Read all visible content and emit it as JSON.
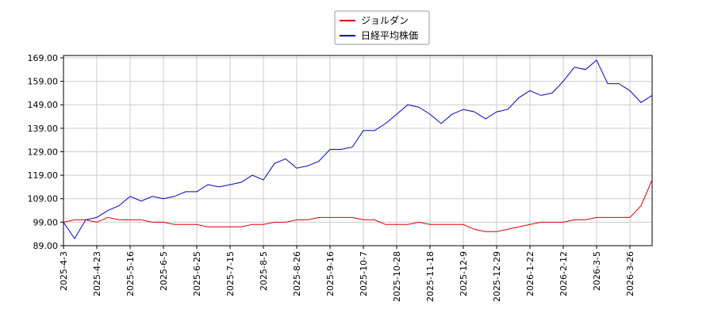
{
  "chart_data": {
    "type": "line",
    "categories": [
      "2025-4-3",
      null,
      null,
      "2025-4-23",
      null,
      null,
      "2025-5-16",
      null,
      null,
      "2025-6-5",
      null,
      null,
      "2025-6-25",
      null,
      null,
      "2025-7-15",
      null,
      null,
      "2025-8-5",
      null,
      null,
      "2025-8-26",
      null,
      null,
      "2025-9-16",
      null,
      null,
      "2025-10-7",
      null,
      null,
      "2025-10-28",
      null,
      null,
      "2025-11-18",
      null,
      null,
      "2025-12-9",
      null,
      null,
      "2025-12-29",
      null,
      null,
      "2026-1-22",
      null,
      null,
      "2026-2-12",
      null,
      null,
      "2026-3-5",
      null,
      null,
      "2026-3-26",
      null,
      null
    ],
    "series": [
      {
        "name": "ジョルダン",
        "color": "#dd0000",
        "values": [
          99,
          100,
          100,
          99,
          101,
          100,
          100,
          100,
          99,
          99,
          98,
          98,
          98,
          97,
          97,
          97,
          97,
          98,
          98,
          99,
          99,
          100,
          100,
          101,
          101,
          101,
          101,
          100,
          100,
          98,
          98,
          98,
          99,
          98,
          98,
          98,
          98,
          96,
          95,
          95,
          96,
          97,
          98,
          99,
          99,
          99,
          100,
          100,
          101,
          101,
          101,
          101,
          106,
          117
        ]
      },
      {
        "name": "日経平均株価",
        "color": "#0000cc",
        "values": [
          99,
          92,
          100,
          101,
          104,
          106,
          110,
          108,
          110,
          109,
          110,
          112,
          112,
          115,
          114,
          115,
          116,
          119,
          117,
          124,
          126,
          122,
          123,
          125,
          130,
          130,
          131,
          138,
          138,
          141,
          145,
          149,
          148,
          145,
          141,
          145,
          147,
          146,
          143,
          146,
          147,
          152,
          155,
          153,
          154,
          159,
          165,
          164,
          168,
          158,
          158,
          155,
          150,
          153
        ]
      }
    ],
    "ylim": [
      89,
      170
    ],
    "yticks": [
      {
        "value": 89,
        "label": "89.00"
      },
      {
        "value": 99,
        "label": "99.00"
      },
      {
        "value": 109,
        "label": "109.00"
      },
      {
        "value": 119,
        "label": "119.00"
      },
      {
        "value": 129,
        "label": "129.00"
      },
      {
        "value": 139,
        "label": "139.00"
      },
      {
        "value": 149,
        "label": "149.00"
      },
      {
        "value": 159,
        "label": "159.00"
      },
      {
        "value": 169,
        "label": "169.00"
      }
    ],
    "grid": true,
    "legend": "upper center"
  }
}
